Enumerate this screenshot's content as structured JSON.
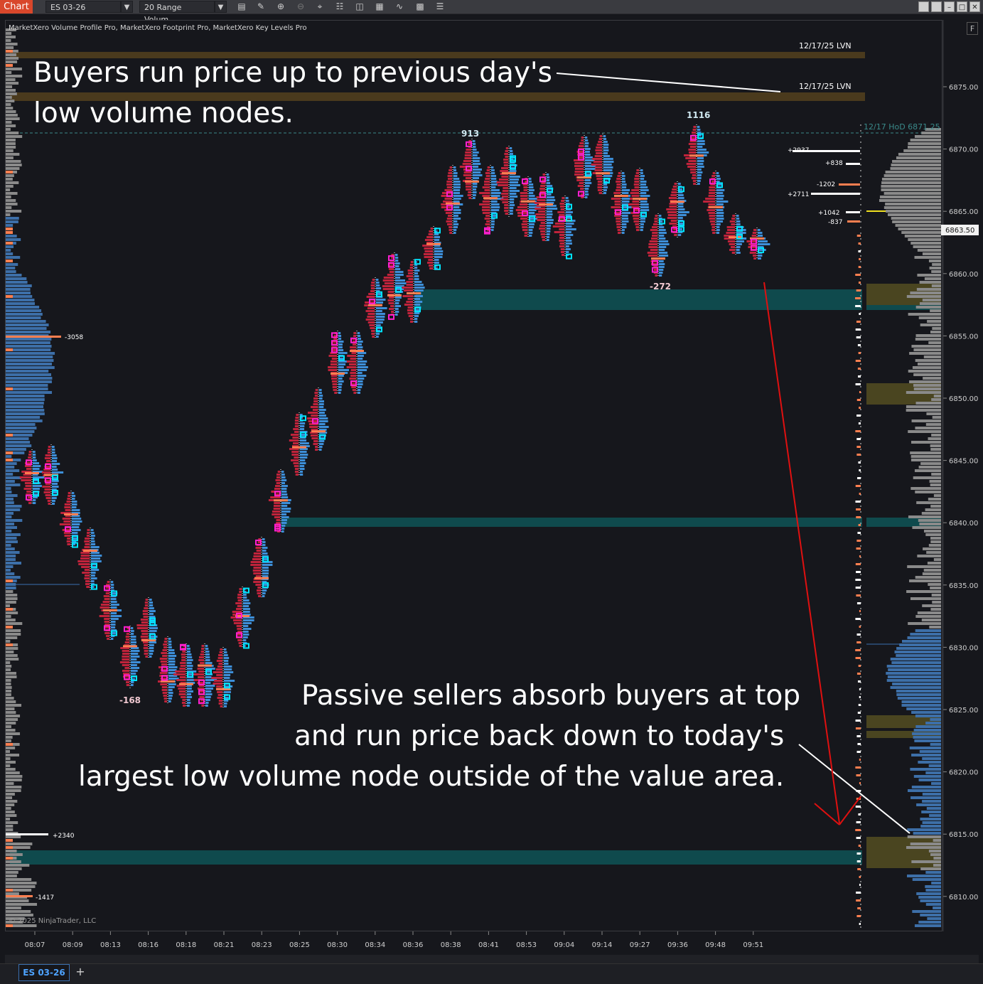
{
  "toolbar": {
    "tab_label": "Chart",
    "instrument": "ES 03-26",
    "bar_type": "20 Range Volum...",
    "icons": [
      "bars-icon",
      "pencil-icon",
      "zoom-in-icon",
      "zoom-out-icon",
      "crosshair-icon",
      "properties-icon",
      "template-icon",
      "strategy-icon",
      "indicator-icon",
      "data-box-icon",
      "list-icon"
    ]
  },
  "indicator_label": "MarketXero Volume Profile Pro, MarketXero Footprint Pro, MarketXero Key Levels Pro",
  "copyright": "© 2025 NinjaTrader, LLC",
  "f_button": "F",
  "price_axis": {
    "labels": [
      "6875.00",
      "6870.00",
      "6865.00",
      "6860.00",
      "6855.00",
      "6850.00",
      "6845.00",
      "6840.00",
      "6835.00",
      "6830.00",
      "6825.00",
      "6820.00",
      "6815.00",
      "6810.00"
    ],
    "current_price": "6863.50"
  },
  "time_axis": {
    "labels": [
      "08:07",
      "08:09",
      "08:13",
      "08:16",
      "08:18",
      "08:21",
      "08:23",
      "08:25",
      "08:30",
      "08:34",
      "08:36",
      "08:38",
      "08:41",
      "08:53",
      "09:04",
      "09:14",
      "09:27",
      "09:36",
      "09:48",
      "09:51"
    ]
  },
  "levels": {
    "lvn_1": "12/17/25 LVN",
    "lvn_2": "12/17/25 LVN",
    "hod": "12/17 HoD 6871.25"
  },
  "delta_labels": {
    "left_top": "-3058",
    "left_bottom_1": "+2340",
    "left_bottom_2": "-1417",
    "right": [
      "+2937",
      "+838",
      "-1202",
      "+2711",
      "+1042",
      "-837"
    ],
    "bar_913": "913",
    "bar_1116": "1116",
    "bar_minus_168": "-168",
    "bar_minus_272": "-272"
  },
  "annotations": {
    "top_line_1": "Buyers run price up to previous day's",
    "top_line_2": "low volume nodes.",
    "bottom_line_1": "Passive sellers absorb buyers at top",
    "bottom_line_2": "and run price back down to today's",
    "bottom_line_3": "largest low volume node outside of the value area."
  },
  "bottom_tabs": {
    "active": "ES 03-26",
    "add": "+"
  },
  "colors": {
    "background": "#16171c",
    "bid_bar": "#c0233b",
    "ask_bar": "#3d8fd9",
    "poc": "#ff7f50",
    "imbalance_up": "#00e5ff",
    "imbalance_down": "#ff1fd0",
    "lvn_band": "#4a3a1d",
    "teal_band": "#0f4a4d",
    "olive_band": "#4a4520",
    "arrow_red": "#e01010"
  }
}
